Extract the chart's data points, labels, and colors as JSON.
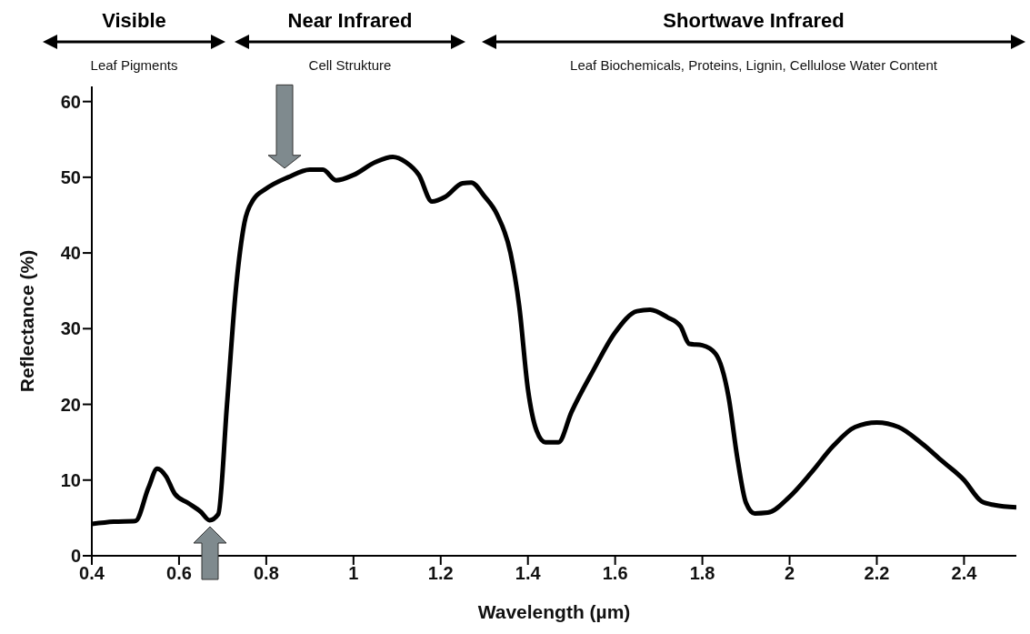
{
  "chart_data": {
    "type": "line",
    "xlabel": "Wavelength  (µm)",
    "ylabel": "Reflectance  (%)",
    "annotations": [
      "Visible",
      "Leaf Pigments",
      "Near Infrared",
      "Cell Strukture",
      "Shortwave Infrared",
      "Leaf Biochemicals, Proteins, Lignin, Cellulose Water Content"
    ],
    "x": [
      0.4,
      0.45,
      0.5,
      0.53,
      0.55,
      0.57,
      0.59,
      0.62,
      0.65,
      0.67,
      0.69,
      0.71,
      0.73,
      0.75,
      0.77,
      0.8,
      0.85,
      0.9,
      0.93,
      0.96,
      1.0,
      1.05,
      1.09,
      1.12,
      1.15,
      1.18,
      1.21,
      1.25,
      1.27,
      1.3,
      1.33,
      1.36,
      1.38,
      1.4,
      1.42,
      1.44,
      1.47,
      1.5,
      1.55,
      1.6,
      1.65,
      1.68,
      1.72,
      1.75,
      1.77,
      1.8,
      1.83,
      1.86,
      1.88,
      1.9,
      1.92,
      1.95,
      2.0,
      2.05,
      2.1,
      2.15,
      2.2,
      2.25,
      2.3,
      2.35,
      2.4,
      2.44,
      2.47,
      2.52
    ],
    "series": [
      {
        "color": "#000000",
        "values": [
          4.2,
          4.5,
          4.6,
          9,
          11.5,
          10.5,
          8.2,
          7,
          5.8,
          4.7,
          5.5,
          20,
          35,
          44,
          47,
          48.5,
          50,
          51,
          51,
          49.6,
          50.3,
          52,
          52.7,
          52,
          50.3,
          46.8,
          47.4,
          49.2,
          49.3,
          47.5,
          45,
          40,
          33,
          22,
          16.5,
          15,
          15,
          19,
          24.5,
          29.5,
          32.3,
          32.5,
          31.5,
          30.3,
          28,
          27.8,
          26.7,
          21,
          13,
          7,
          5.6,
          5.7,
          7.8,
          11,
          14.5,
          17,
          17.6,
          17,
          15,
          12.5,
          10,
          7.2,
          6.7,
          6.4
        ]
      }
    ],
    "xlim": [
      0.4,
      2.52
    ],
    "xticks": [
      0.4,
      0.6,
      0.8,
      1,
      1.2,
      1.4,
      1.6,
      1.8,
      2,
      2.2,
      2.4
    ],
    "ylim": [
      0,
      62
    ],
    "yticks": [
      0,
      10,
      20,
      30,
      40,
      50,
      60
    ],
    "grid": false,
    "legend": false,
    "line_style": "solid"
  }
}
